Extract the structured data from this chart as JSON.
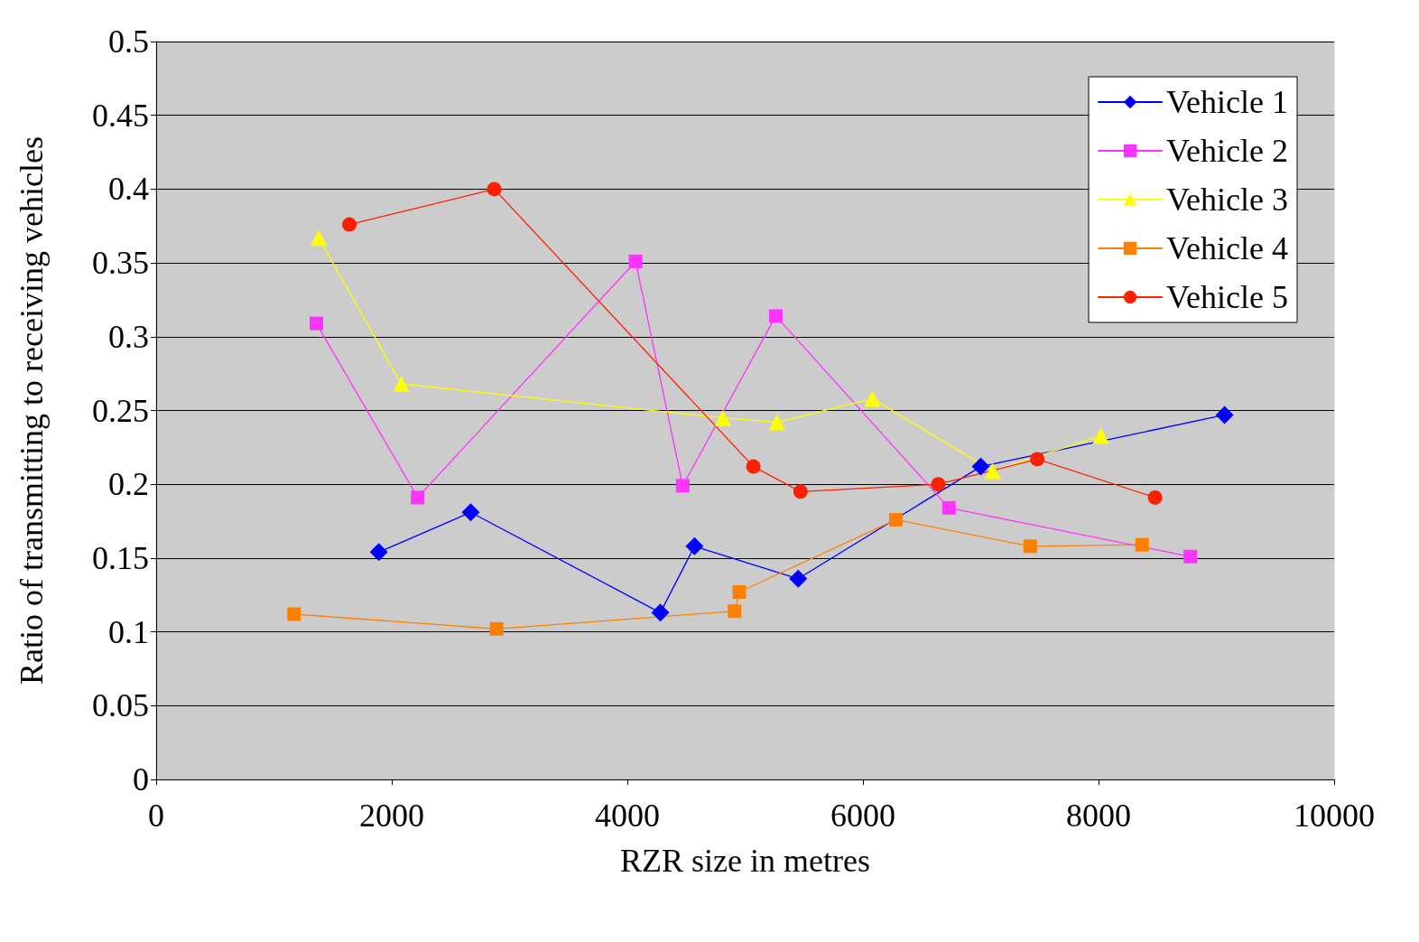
{
  "chart_data": {
    "type": "line",
    "xlabel": "RZR size in metres",
    "ylabel": "Ratio of transmitting to receiving vehicles",
    "xlim": [
      0,
      10000
    ],
    "xticks": [
      0,
      2000,
      4000,
      6000,
      8000,
      10000
    ],
    "ylim": [
      0,
      0.5
    ],
    "yticks": [
      0,
      0.05,
      0.1,
      0.15,
      0.2,
      0.25,
      0.3,
      0.35,
      0.4,
      0.45,
      0.5
    ],
    "grid": "y",
    "legend": "top right",
    "line_style": "solid",
    "series": [
      {
        "name": "Vehicle 1",
        "color": "#0000ff",
        "marker": "diamond",
        "x": [
          1890,
          2670,
          4280,
          4570,
          5450,
          7000,
          9070
        ],
        "values": [
          0.154,
          0.181,
          0.113,
          0.158,
          0.136,
          0.212,
          0.247
        ]
      },
      {
        "name": "Vehicle 2",
        "color": "#ff33ff",
        "marker": "square",
        "x": [
          1360,
          2220,
          4070,
          4470,
          5260,
          6730,
          8780
        ],
        "values": [
          0.309,
          0.191,
          0.351,
          0.199,
          0.314,
          0.184,
          0.151
        ]
      },
      {
        "name": "Vehicle 3",
        "color": "#ffff00",
        "marker": "triangle",
        "x": [
          1380,
          2080,
          4810,
          5270,
          6080,
          7100,
          8020
        ],
        "values": [
          0.367,
          0.268,
          0.245,
          0.242,
          0.258,
          0.209,
          0.233
        ]
      },
      {
        "name": "Vehicle 4",
        "color": "#ff8000",
        "marker": "square",
        "x": [
          1170,
          2890,
          4910,
          4950,
          6280,
          7420,
          8370
        ],
        "values": [
          0.112,
          0.102,
          0.114,
          0.127,
          0.176,
          0.158,
          0.159
        ]
      },
      {
        "name": "Vehicle 5",
        "color": "#ff2000",
        "marker": "circle",
        "x": [
          1640,
          2870,
          5070,
          5470,
          6640,
          7480,
          8480
        ],
        "values": [
          0.376,
          0.4,
          0.212,
          0.195,
          0.2,
          0.217,
          0.191
        ]
      }
    ]
  }
}
